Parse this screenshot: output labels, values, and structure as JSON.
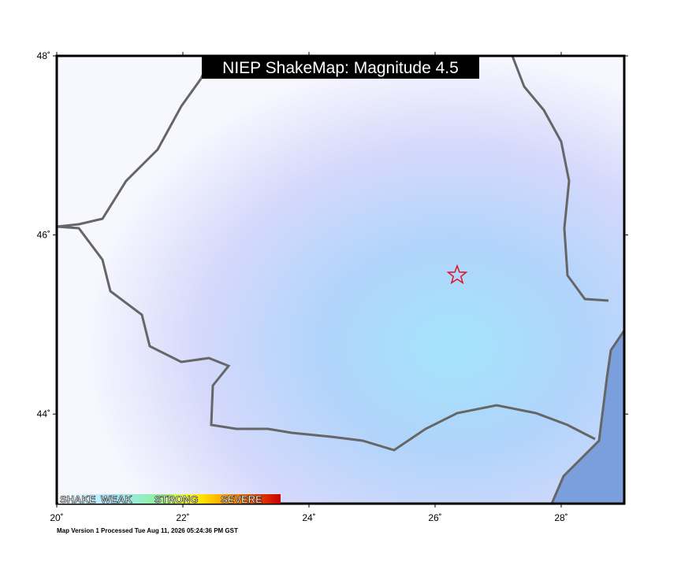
{
  "map": {
    "title": "NIEP ShakeMap: Magnitude 4.5",
    "lon_range": [
      20,
      29
    ],
    "lat_range": [
      43,
      48
    ],
    "lon_ticks": [
      {
        "value": 20,
        "label": "20˚"
      },
      {
        "value": 22,
        "label": "22˚"
      },
      {
        "value": 24,
        "label": "24˚"
      },
      {
        "value": 26,
        "label": "26˚"
      },
      {
        "value": 28,
        "label": "28˚"
      }
    ],
    "lat_ticks": [
      {
        "value": 44,
        "label": "44˚"
      },
      {
        "value": 46,
        "label": "46˚"
      },
      {
        "value": 48,
        "label": "48˚"
      }
    ],
    "epicenter": {
      "lon": 26.35,
      "lat": 45.55
    },
    "legend": [
      "SHAKE",
      "WEAK",
      "STRONG",
      "SEVERE"
    ],
    "footer": "Map Version 1 Processed Tue Aug 11, 2026 05:24:36 PM GST"
  }
}
